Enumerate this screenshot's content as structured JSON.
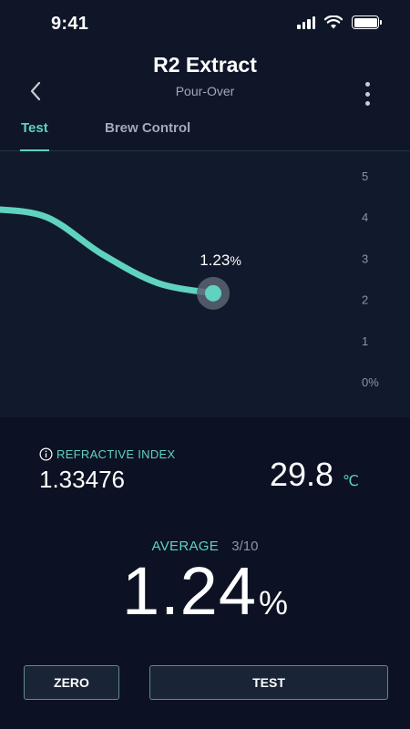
{
  "status_bar": {
    "time": "9:41",
    "icons": [
      "signal-icon",
      "wifi-icon",
      "battery-icon"
    ]
  },
  "header": {
    "title": "R2 Extract",
    "subtitle": "Pour-Over",
    "back_icon": "chevron-left-icon",
    "menu_icon": "more-vertical-icon"
  },
  "tabs": [
    {
      "label": "Test",
      "active": true
    },
    {
      "label": "Brew Control",
      "active": false
    }
  ],
  "chart_data": {
    "type": "line",
    "ylim": [
      0,
      5
    ],
    "y_ticks": [
      "5",
      "4",
      "3",
      "2",
      "1",
      "0%"
    ],
    "points": [
      {
        "x": 0,
        "y": 4.2
      },
      {
        "x": 1,
        "y": 4.0
      },
      {
        "x": 2,
        "y": 3.1
      },
      {
        "x": 3,
        "y": 2.4
      },
      {
        "x": 4,
        "y": 2.15
      }
    ],
    "current": {
      "label_value": "1.23",
      "label_unit": "%"
    },
    "colors": {
      "line": "#5fd3bf",
      "marker_halo": "#5c6372"
    }
  },
  "readings": {
    "refractive_index_label": "REFRACTIVE INDEX",
    "refractive_index_value": "1.33476",
    "temperature_value": "29.8",
    "temperature_unit": "℃",
    "average_label": "AVERAGE",
    "average_count": "3/10",
    "average_value": "1.24",
    "average_unit": "%"
  },
  "buttons": {
    "zero_label": "ZERO",
    "test_label": "TEST"
  },
  "colors": {
    "accent": "#5fd3bf",
    "background": "#0f1628",
    "button_border": "#5e8a92"
  }
}
